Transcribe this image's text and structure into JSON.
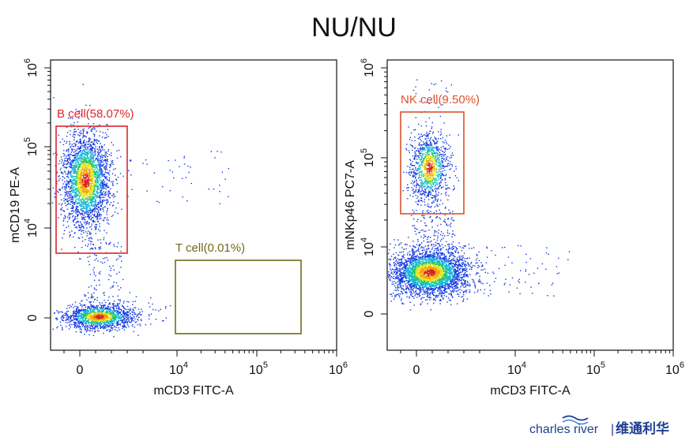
{
  "title": "NU/NU",
  "chart_data": [
    {
      "type": "scatter",
      "xlabel": "mCD3 FITC-A",
      "ylabel": "mCD19 PE-A",
      "x_tick_labels": [
        {
          "base": "0",
          "exp": ""
        },
        {
          "base": "10",
          "exp": "4"
        },
        {
          "base": "10",
          "exp": "5"
        },
        {
          "base": "10",
          "exp": "6"
        }
      ],
      "y_tick_labels": [
        {
          "base": "0",
          "exp": ""
        },
        {
          "base": "10",
          "exp": "4"
        },
        {
          "base": "10",
          "exp": "5"
        },
        {
          "base": "10",
          "exp": "6"
        }
      ],
      "gates": [
        {
          "label": "B cell(58.07%)",
          "color": "#e0252b",
          "percent": 58.07
        },
        {
          "label": "T cell(0.01%)",
          "color": "#6f6a1c",
          "percent": 0.01
        }
      ]
    },
    {
      "type": "scatter",
      "xlabel": "mCD3 FITC-A",
      "ylabel": "mNKp46 PC7-A",
      "x_tick_labels": [
        {
          "base": "0",
          "exp": ""
        },
        {
          "base": "10",
          "exp": "4"
        },
        {
          "base": "10",
          "exp": "5"
        },
        {
          "base": "10",
          "exp": "6"
        }
      ],
      "y_tick_labels": [
        {
          "base": "0",
          "exp": ""
        },
        {
          "base": "10",
          "exp": "4"
        },
        {
          "base": "10",
          "exp": "5"
        },
        {
          "base": "10",
          "exp": "6"
        }
      ],
      "gates": [
        {
          "label": "NK cell(9.50%)",
          "color": "#d9532c",
          "percent": 9.5
        }
      ]
    }
  ],
  "logo": {
    "text_en": "charles river",
    "separator": "|",
    "text_cn": "维通利华",
    "color": "#1d3f8f"
  }
}
